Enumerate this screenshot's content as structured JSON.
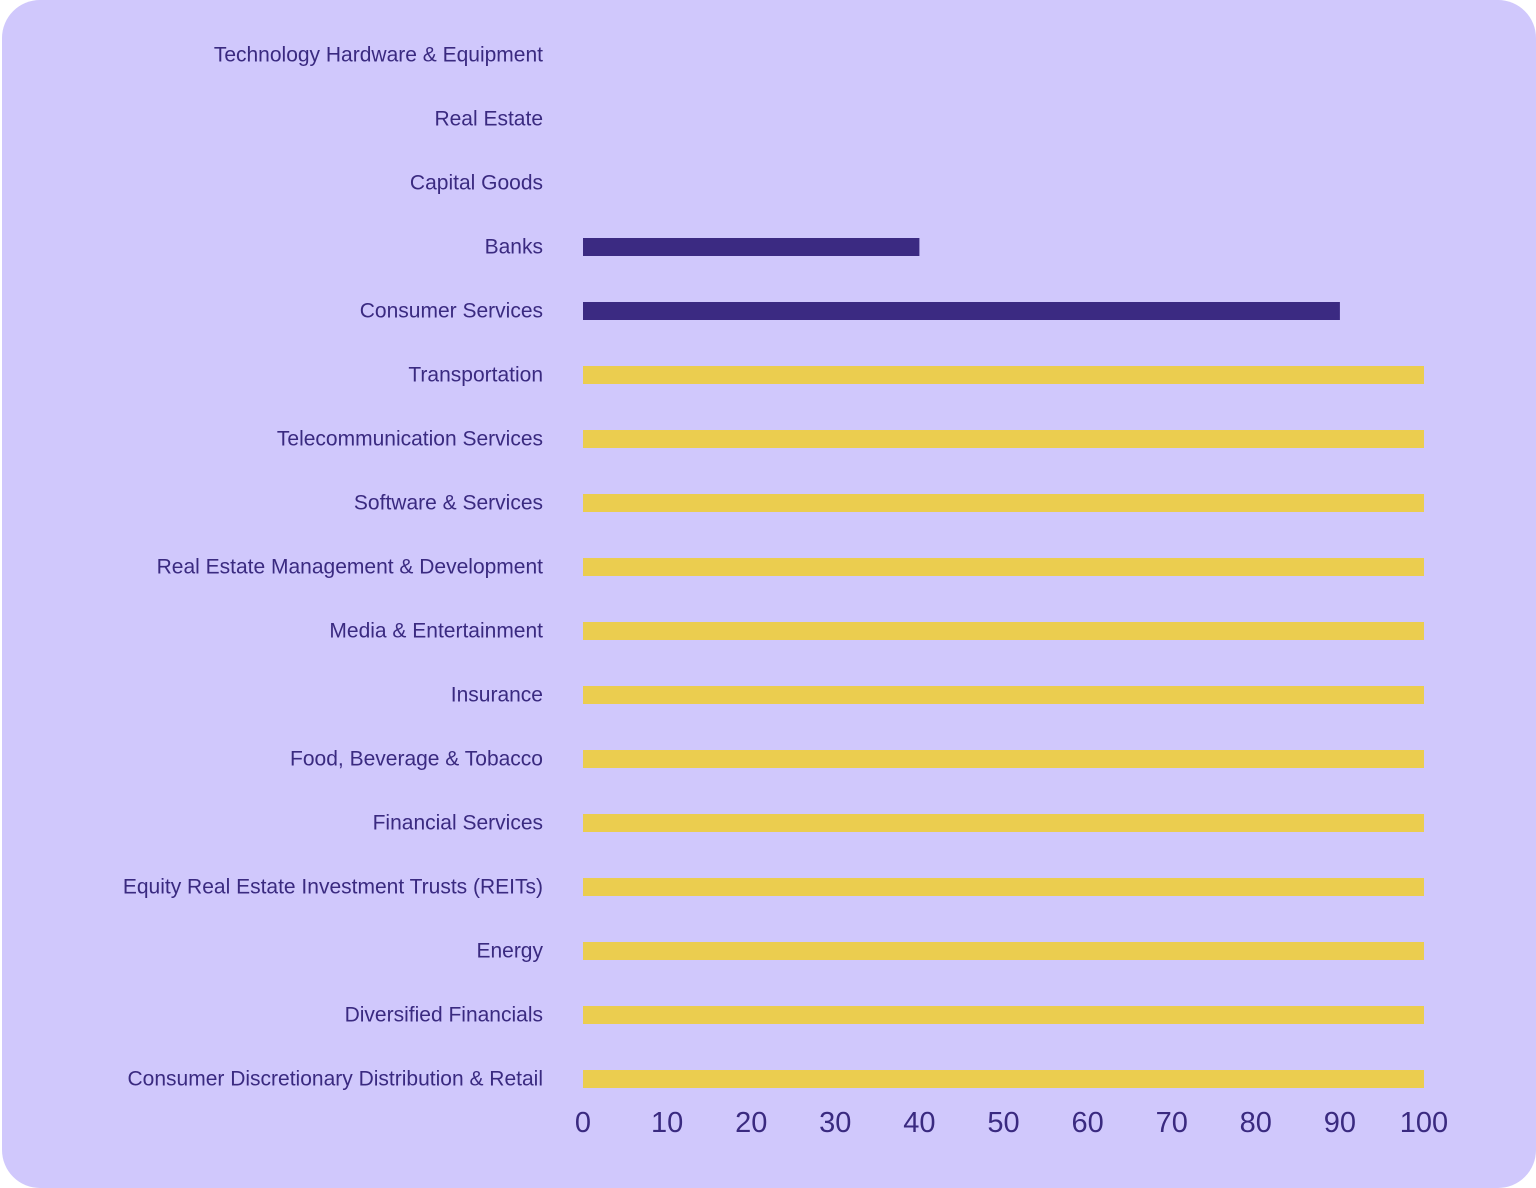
{
  "chart_data": {
    "type": "bar",
    "orientation": "horizontal",
    "categories": [
      "Technology Hardware & Equipment",
      "Real Estate",
      "Capital Goods",
      "Banks",
      "Consumer Services",
      "Transportation",
      "Telecommunication Services",
      "Software & Services",
      "Real Estate Management & Development",
      "Media & Entertainment",
      "Insurance",
      "Food, Beverage & Tobacco",
      "Financial Services",
      "Equity Real Estate Investment Trusts (REITs)",
      "Energy",
      "Diversified Financials",
      "Consumer Discretionary Distribution & Retail"
    ],
    "values": [
      0,
      0,
      0,
      40,
      90,
      100,
      100,
      100,
      100,
      100,
      100,
      100,
      100,
      100,
      100,
      100,
      100
    ],
    "bar_colors": [
      "#3b2a82",
      "#3b2a82",
      "#3b2a82",
      "#3b2a82",
      "#3b2a82",
      "#ebcd4f",
      "#ebcd4f",
      "#ebcd4f",
      "#ebcd4f",
      "#ebcd4f",
      "#ebcd4f",
      "#ebcd4f",
      "#ebcd4f",
      "#ebcd4f",
      "#ebcd4f",
      "#ebcd4f",
      "#ebcd4f"
    ],
    "xlim": [
      0,
      100
    ],
    "xticks": [
      0,
      10,
      20,
      30,
      40,
      50,
      60,
      70,
      80,
      90,
      100
    ],
    "title": "",
    "xlabel": "",
    "ylabel": "",
    "grid": false,
    "background_color": "#d0c8fc",
    "text_color": "#3a2a80"
  }
}
